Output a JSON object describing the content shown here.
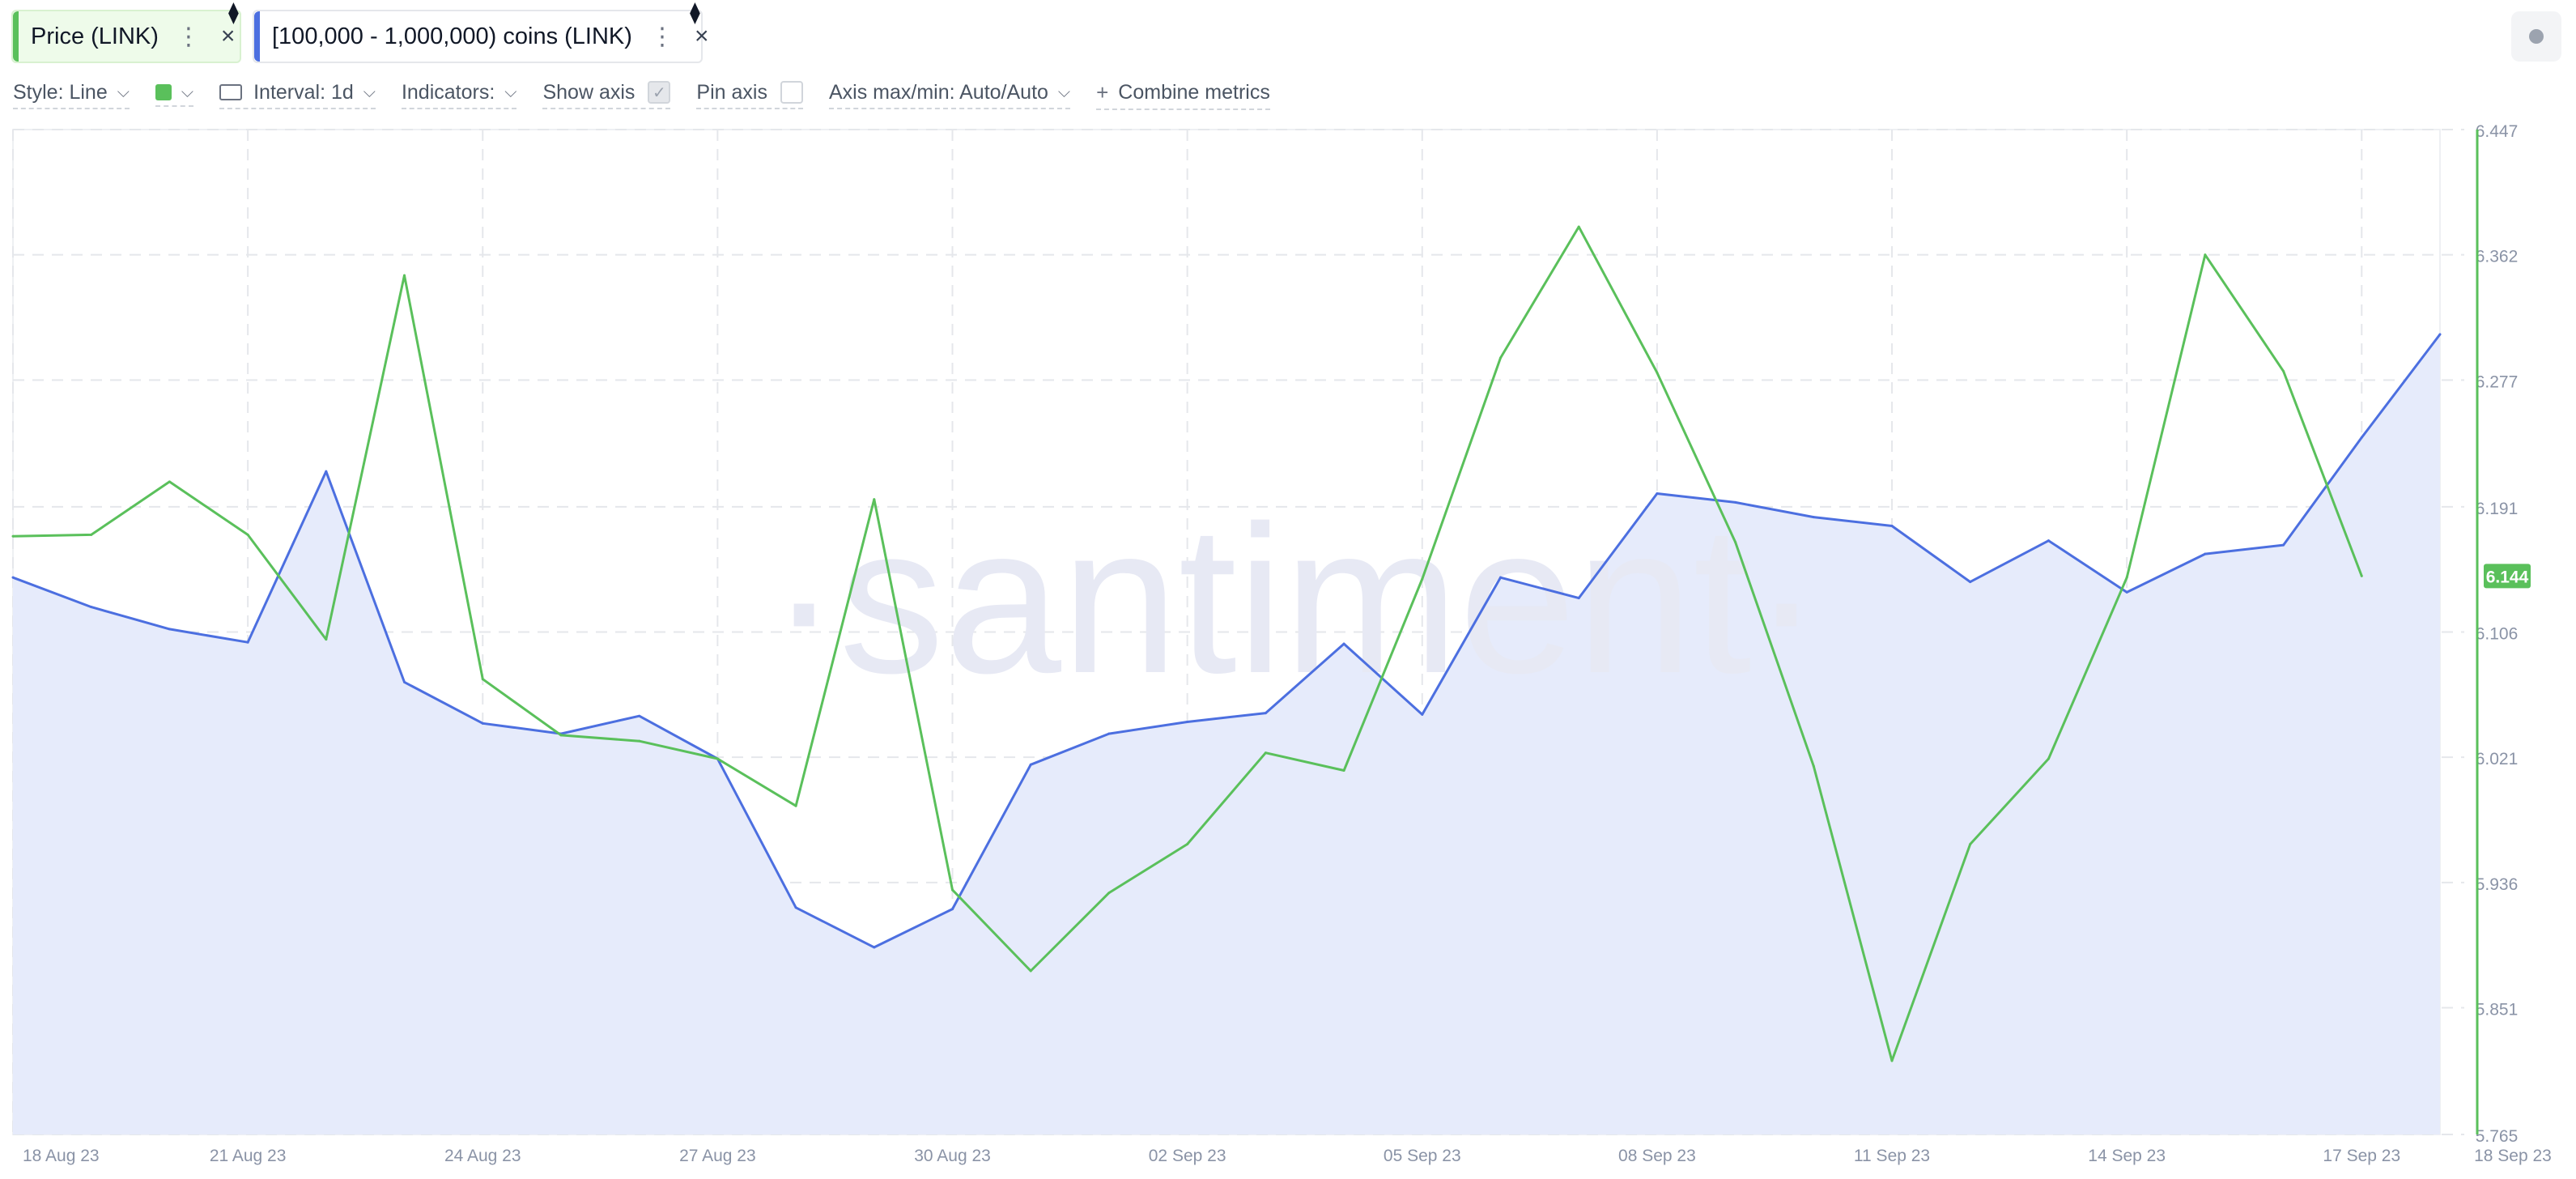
{
  "metrics": [
    {
      "label": "Price (LINK)",
      "color": "#5ac05b"
    },
    {
      "label": "[100,000 - 1,000,000) coins (LINK)",
      "color": "#4c6fe0"
    }
  ],
  "icons": {
    "menu": "⋮",
    "close": "×",
    "eth": "⧫",
    "chevron": "⌵",
    "check": "✓",
    "plus": "+"
  },
  "toolbar": {
    "style": "Style: Line",
    "interval": "Interval: 1d",
    "indicators": "Indicators:",
    "show_axis": "Show axis",
    "show_axis_checked": true,
    "pin_axis": "Pin axis",
    "pin_axis_checked": false,
    "axis_maxmin": "Axis max/min: Auto/Auto",
    "combine": "Combine metrics"
  },
  "chart_data": {
    "type": "line",
    "watermark": "·santiment·",
    "x": [
      "18 Aug 23",
      "19 Aug 23",
      "20 Aug 23",
      "21 Aug 23",
      "22 Aug 23",
      "23 Aug 23",
      "24 Aug 23",
      "25 Aug 23",
      "26 Aug 23",
      "27 Aug 23",
      "28 Aug 23",
      "29 Aug 23",
      "30 Aug 23",
      "31 Aug 23",
      "01 Sep 23",
      "02 Sep 23",
      "03 Sep 23",
      "04 Sep 23",
      "05 Sep 23",
      "06 Sep 23",
      "07 Sep 23",
      "08 Sep 23",
      "09 Sep 23",
      "10 Sep 23",
      "11 Sep 23",
      "12 Sep 23",
      "13 Sep 23",
      "14 Sep 23",
      "15 Sep 23",
      "16 Sep 23",
      "17 Sep 23",
      "18 Sep 23"
    ],
    "x_ticks": [
      "18 Aug 23",
      "21 Aug 23",
      "24 Aug 23",
      "27 Aug 23",
      "30 Aug 23",
      "02 Sep 23",
      "05 Sep 23",
      "08 Sep 23",
      "11 Sep 23",
      "14 Sep 23",
      "17 Sep 23",
      "18 Sep 23"
    ],
    "y_ticks": [
      "6.447",
      "6.362",
      "6.277",
      "6.191",
      "6.106",
      "6.021",
      "5.936",
      "5.851",
      "5.765"
    ],
    "ylim": [
      5.765,
      6.447
    ],
    "price_label": "6.144",
    "series": [
      {
        "name": "Price (LINK)",
        "color": "#5ac05b",
        "values": [
          6.171,
          6.172,
          6.208,
          6.172,
          6.101,
          6.348,
          6.074,
          6.036,
          6.032,
          6.02,
          5.988,
          6.196,
          5.931,
          5.876,
          5.929,
          5.962,
          6.024,
          6.012,
          6.142,
          6.292,
          6.381,
          6.282,
          6.167,
          6.015,
          5.815,
          5.962,
          6.02,
          6.143,
          6.362,
          6.283,
          6.144,
          null
        ]
      },
      {
        "name": "[100,000 - 1,000,000) coins (LINK)",
        "color": "#4c6fe0",
        "area": true,
        "values": [
          6.143,
          6.123,
          6.108,
          6.099,
          6.215,
          6.072,
          6.044,
          6.037,
          6.049,
          6.02,
          5.919,
          5.892,
          5.918,
          6.016,
          6.037,
          6.045,
          6.051,
          6.098,
          6.05,
          6.143,
          6.129,
          6.2,
          6.194,
          6.184,
          6.178,
          6.14,
          6.168,
          6.133,
          6.159,
          6.165,
          6.238,
          6.308
        ]
      }
    ],
    "grid": true,
    "legend": "top-left"
  }
}
